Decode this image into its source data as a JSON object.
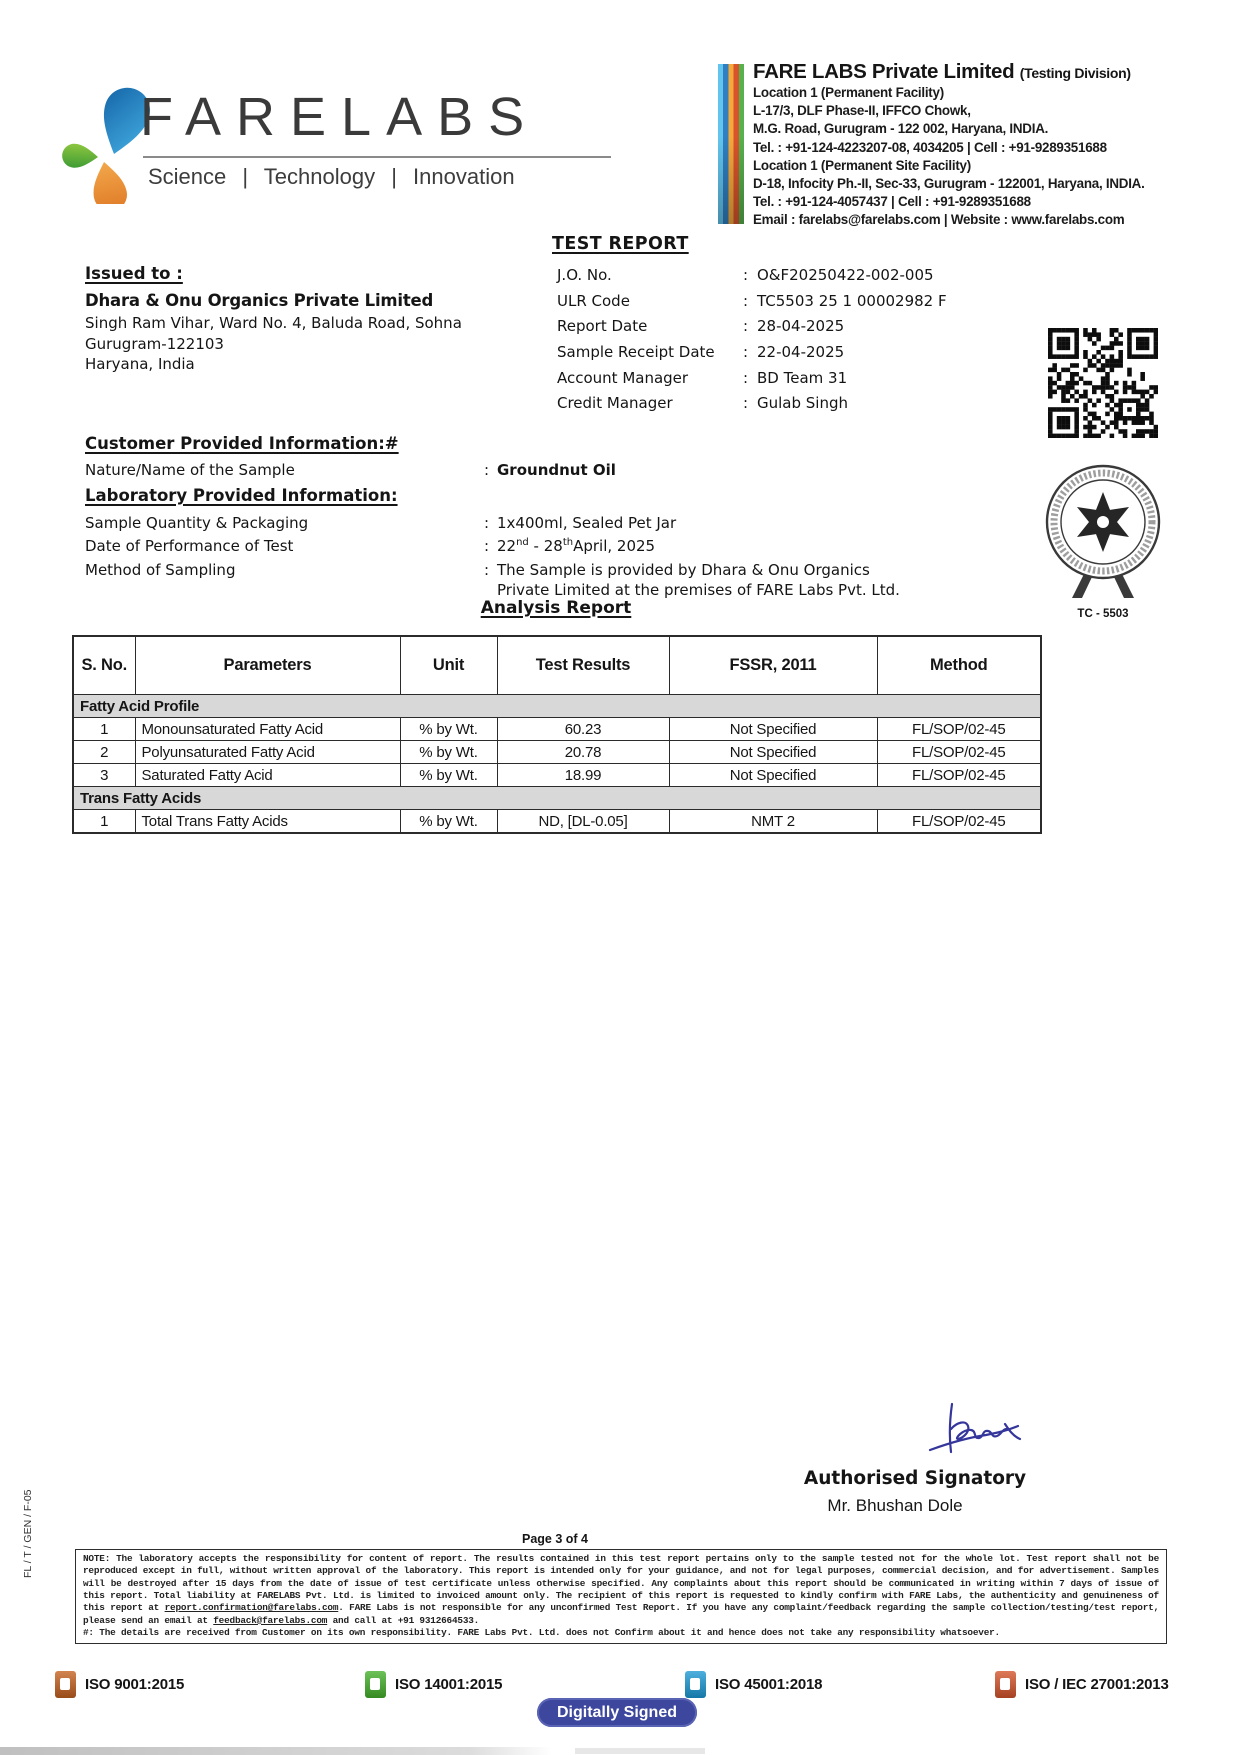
{
  "chars": {
    "colon": ":"
  },
  "brand": {
    "logo_text": "FARELABS",
    "tagline": "Science | Technology | Innovation"
  },
  "company": {
    "name": "FARE LABS Private Limited",
    "division": "(Testing Division)",
    "lines": [
      {
        "t": "Location 1 (Permanent Facility)",
        "b": true
      },
      {
        "t": "L-17/3, DLF Phase-II, IFFCO Chowk,"
      },
      {
        "t": "M.G. Road, Gurugram - 122 002, Haryana, INDIA."
      },
      {
        "t": "Tel. : +91-124-4223207-08, 4034205 | Cell : +91-9289351688"
      },
      {
        "t": "Location 1 (Permanent Site Facility)",
        "b": true
      },
      {
        "t": "D-18, Infocity Ph.-II, Sec-33, Gurugram - 122001, Haryana, INDIA."
      },
      {
        "t": "Tel. : +91-124-4057437 | Cell : +91-9289351688"
      },
      {
        "t": "Email : farelabs@farelabs.com | Website : www.farelabs.com"
      }
    ]
  },
  "report": {
    "title": "TEST REPORT"
  },
  "issued_to": {
    "heading": "Issued to :",
    "name": "Dhara & Onu Organics Private Limited",
    "address": [
      "Singh Ram Vihar, Ward No. 4, Baluda Road, Sohna",
      "Gurugram-122103",
      "Haryana, India"
    ]
  },
  "job": {
    "rows": [
      {
        "label": "J.O. No.",
        "value": "O&F20250422-002-005"
      },
      {
        "label": "ULR Code",
        "value": "TC5503 25 1 00002982 F"
      },
      {
        "label": "Report Date",
        "value": "28-04-2025"
      },
      {
        "label": "Sample Receipt Date",
        "value": "22-04-2025"
      },
      {
        "label": "Account Manager",
        "value": "BD Team 31"
      },
      {
        "label": "Credit Manager",
        "value": "Gulab Singh"
      }
    ]
  },
  "customer_info": {
    "heading": "Customer Provided Information:#",
    "label": "Nature/Name of the Sample",
    "value": "Groundnut Oil"
  },
  "lab_info": {
    "heading": "Laboratory Provided Information:",
    "qty_label": "Sample Quantity & Packaging",
    "qty_value": "1x400ml, Sealed Pet Jar",
    "date_label": "Date of Performance of Test",
    "date_d1": "22",
    "date_s1": "nd",
    "date_mid": " - ",
    "date_d2": "28",
    "date_s2": "th",
    "date_rest": "April, 2025",
    "sampling_label": "Method of Sampling",
    "sampling_line1": "The Sample is provided by Dhara & Onu Organics",
    "sampling_line2": "Private Limited at the premises of FARE Labs Pvt. Ltd."
  },
  "seal": {
    "code": "TC - 5503"
  },
  "analysis": {
    "title": "Analysis Report",
    "headers": [
      "S. No.",
      "Parameters",
      "Unit",
      "Test Results",
      "FSSR, 2011",
      "Method"
    ],
    "sections": [
      {
        "title": "Fatty Acid Profile",
        "rows": [
          {
            "sno": "1",
            "param": "Monounsaturated Fatty Acid",
            "unit": "% by Wt.",
            "result": "60.23",
            "fssr": "Not Specified",
            "method": "FL/SOP/02-45"
          },
          {
            "sno": "2",
            "param": "Polyunsaturated Fatty Acid",
            "unit": "% by Wt.",
            "result": "20.78",
            "fssr": "Not Specified",
            "method": "FL/SOP/02-45"
          },
          {
            "sno": "3",
            "param": "Saturated Fatty Acid",
            "unit": "% by Wt.",
            "result": "18.99",
            "fssr": "Not Specified",
            "method": "FL/SOP/02-45"
          }
        ]
      },
      {
        "title": "Trans Fatty Acids",
        "rows": [
          {
            "sno": "1",
            "param": "Total Trans Fatty Acids",
            "unit": "% by Wt.",
            "result": "ND, [DL-0.05]",
            "fssr": "NMT 2",
            "method": "FL/SOP/02-45"
          }
        ]
      }
    ]
  },
  "signature": {
    "title": "Authorised Signatory",
    "name": "Mr. Bhushan Dole"
  },
  "footer": {
    "page": "Page 3 of 4",
    "form_code": "FL / T / GEN / F-05",
    "note_p1a": "NOTE:  The laboratory accepts the responsibility for content of report. The results contained in this test report pertains only to the sample tested not for the whole lot. Test report shall not be reproduced except in full, without written approval of the laboratory. This report is intended only for your guidance, and not for legal purposes, commercial decision, and for advertisement.  Samples will be destroyed after 15 days from the date of issue of test certificate unless otherwise specified. Any complaints about this report should be communicated in writing within 7 days of issue of this report. Total liability at FARELABS Pvt. Ltd. is limited to invoiced amount only. The recipient of this report is requested to kindly confirm with FARE Labs, the authenticity and genuineness of this report at ",
    "email1": "report.confirmation@farelabs.com",
    "note_p1b": ".  FARE Labs is not responsible for any unconfirmed Test Report. If you have any complaint/feedback regarding the sample collection/testing/test report, please send an email at ",
    "email2": "feedback@farelabs.com",
    "note_p1c": " and call at +91 9312664533.",
    "note_p2": "#: The details are received from Customer on its own responsibility. FARE Labs Pvt. Ltd. does not Confirm about it and hence does not take any responsibility whatsoever.",
    "digitally_signed": "Digitally Signed",
    "iso_badges": [
      {
        "label": "ISO 9001:2015",
        "color": "#c4601f"
      },
      {
        "label": "ISO 14001:2015",
        "color": "#43b02a"
      },
      {
        "label": "ISO 45001:2018",
        "color": "#1a99d5"
      },
      {
        "label": "ISO / IEC 27001:2013",
        "color": "#d4542a"
      }
    ]
  }
}
